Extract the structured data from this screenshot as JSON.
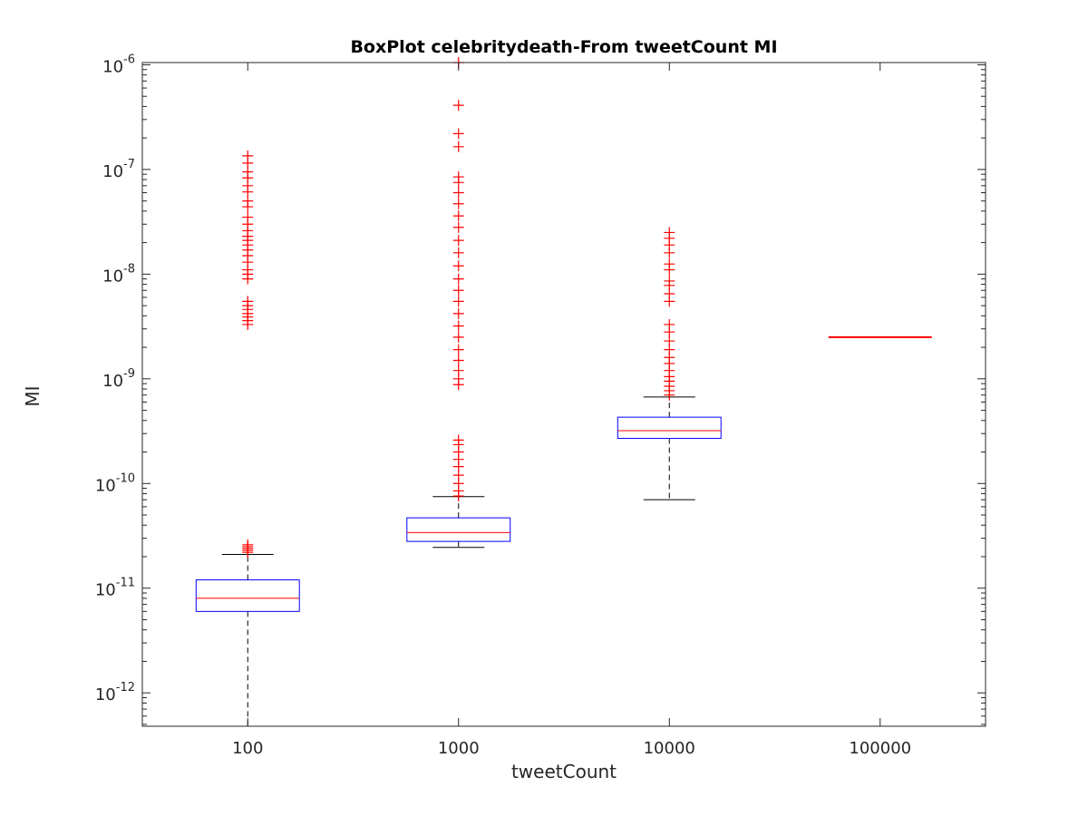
{
  "chart_data": {
    "type": "box",
    "title": "BoxPlot celebritydeath-From tweetCount MI",
    "xlabel": "tweetCount",
    "ylabel": "MI",
    "yscale": "log",
    "ylim": [
      4.8e-13,
      1.05e-06
    ],
    "y_tick_base": "10",
    "y_ticks": [
      {
        "value": 1e-12,
        "exp": "-12"
      },
      {
        "value": 1e-11,
        "exp": "-11"
      },
      {
        "value": 1e-10,
        "exp": "-10"
      },
      {
        "value": 1e-09,
        "exp": "-9"
      },
      {
        "value": 1e-08,
        "exp": "-8"
      },
      {
        "value": 1e-07,
        "exp": "-7"
      },
      {
        "value": 1e-06,
        "exp": "-6"
      }
    ],
    "categories": [
      "100",
      "1000",
      "10000",
      "100000"
    ],
    "colors": {
      "box": "#0000ff",
      "median": "#ff0000",
      "whisker": "#000000",
      "outlier": "#ff0000"
    },
    "boxes": [
      {
        "category": "100",
        "lower_whisker": 4.8e-13,
        "q1": 6e-12,
        "median": 8e-12,
        "q3": 1.2e-11,
        "upper_whisker": 2.1e-11,
        "outliers": [
          2.2e-11,
          2.3e-11,
          2.4e-11,
          2.5e-11,
          2.6e-11,
          3.3e-09,
          3.6e-09,
          3.9e-09,
          4.2e-09,
          4.6e-09,
          5e-09,
          5.5e-09,
          9e-09,
          1e-08,
          1.1e-08,
          1.3e-08,
          1.5e-08,
          1.7e-08,
          1.9e-08,
          2.1e-08,
          2.3e-08,
          2.6e-08,
          3e-08,
          3.5e-08,
          4.4e-08,
          5e-08,
          6.1e-08,
          7e-08,
          8.3e-08,
          9.5e-08,
          1.15e-07,
          1.35e-07
        ]
      },
      {
        "category": "1000",
        "lower_whisker": 2.45e-11,
        "q1": 2.8e-11,
        "median": 3.4e-11,
        "q3": 4.7e-11,
        "upper_whisker": 7.5e-11,
        "outliers": [
          7.6e-11,
          8.5e-11,
          1e-10,
          1.2e-10,
          1.45e-10,
          1.7e-10,
          2e-10,
          2.35e-10,
          2.6e-10,
          8.8e-10,
          1e-09,
          1.2e-09,
          1.5e-09,
          1.9e-09,
          2.5e-09,
          3.2e-09,
          4.2e-09,
          5.5e-09,
          7e-09,
          9e-09,
          1.2e-08,
          1.6e-08,
          2.1e-08,
          2.8e-08,
          3.6e-08,
          4.7e-08,
          6e-08,
          7.5e-08,
          8.5e-08,
          1.65e-07,
          2.2e-07,
          4.1e-07,
          1.05e-06
        ]
      },
      {
        "category": "10000",
        "lower_whisker": 7e-11,
        "q1": 2.7e-10,
        "median": 3.2e-10,
        "q3": 4.3e-10,
        "upper_whisker": 6.7e-10,
        "outliers": [
          7e-10,
          7.7e-10,
          8.5e-10,
          9.5e-10,
          1.05e-09,
          1.2e-09,
          1.4e-09,
          1.6e-09,
          1.9e-09,
          2.3e-09,
          2.8e-09,
          3.3e-09,
          5.5e-09,
          6.5e-09,
          7.8e-09,
          8.6e-09,
          1.1e-08,
          1.25e-08,
          1.6e-08,
          1.9e-08,
          2.2e-08,
          2.5e-08
        ]
      },
      {
        "category": "100000",
        "lower_whisker": 2.5e-09,
        "q1": 2.5e-09,
        "median": 2.5e-09,
        "q3": 2.5e-09,
        "upper_whisker": 2.5e-09,
        "outliers": []
      }
    ]
  }
}
